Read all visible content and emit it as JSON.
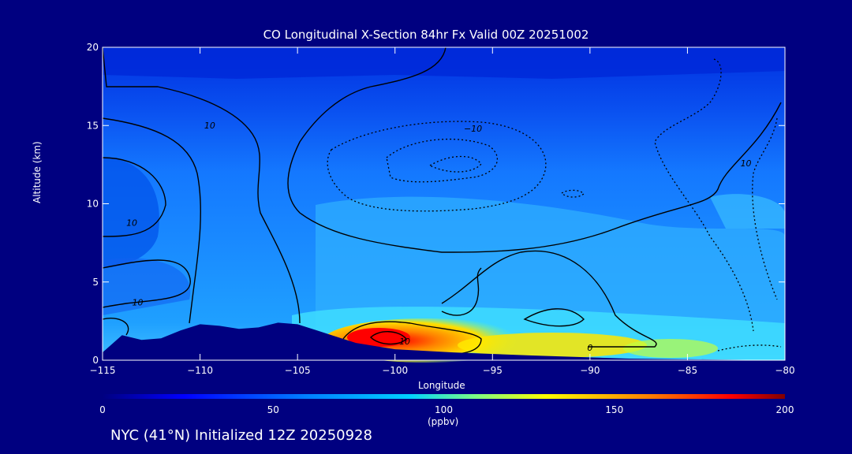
{
  "chart_data": {
    "type": "heatmap",
    "title": "CO Longitudinal X-Section 84hr  Fx Valid 00Z 20251002",
    "xlabel": "Longitude",
    "ylabel": "Altitude (km)",
    "xlim": [
      -115,
      -80
    ],
    "ylim": [
      0,
      20
    ],
    "x_ticks": [
      -115,
      -110,
      -105,
      -100,
      -95,
      -90,
      -85,
      -80
    ],
    "y_ticks": [
      0,
      5,
      10,
      15,
      20
    ],
    "colorbar": {
      "min": 0,
      "max": 200,
      "ticks": [
        0,
        50,
        100,
        150,
        200
      ],
      "unit": "(ppbv)",
      "colors": [
        "#000080",
        "#0000ff",
        "#0080ff",
        "#00c0ff",
        "#40ffff",
        "#c0ff40",
        "#ffff00",
        "#ff8000",
        "#ff0000",
        "#800000"
      ]
    },
    "field_levels": [
      {
        "alt": [
          0,
          2
        ],
        "value_range": [
          90,
          200
        ]
      },
      {
        "alt": [
          2,
          5
        ],
        "value_range": [
          60,
          90
        ]
      },
      {
        "alt": [
          5,
          12
        ],
        "value_range": [
          50,
          70
        ]
      },
      {
        "alt": [
          12,
          20
        ],
        "value_range": [
          20,
          50
        ]
      }
    ],
    "contour_labels": [
      {
        "text": "10",
        "lon": -109.5,
        "alt": 14.8
      },
      {
        "text": "10",
        "lon": -113.5,
        "alt": 8.6
      },
      {
        "text": "10",
        "lon": -113.2,
        "alt": 3.5
      },
      {
        "text": "-10",
        "lon": -96.0,
        "alt": 14.6
      },
      {
        "text": "10",
        "lon": -82.0,
        "alt": 12.4
      },
      {
        "text": "10",
        "lon": -99.5,
        "alt": 1.0
      },
      {
        "text": "0",
        "lon": -90.0,
        "alt": 0.6
      }
    ],
    "terrain": [
      [
        -115,
        0.5
      ],
      [
        -114,
        1.6
      ],
      [
        -113,
        1.3
      ],
      [
        -112,
        1.4
      ],
      [
        -111,
        1.9
      ],
      [
        -110,
        2.3
      ],
      [
        -109,
        2.2
      ],
      [
        -108,
        2.0
      ],
      [
        -107,
        2.1
      ],
      [
        -106,
        2.4
      ],
      [
        -105,
        2.3
      ],
      [
        -104,
        1.9
      ],
      [
        -103,
        1.5
      ],
      [
        -102,
        1.1
      ],
      [
        -101,
        0.9
      ],
      [
        -100,
        0.7
      ],
      [
        -97,
        0.5
      ],
      [
        -93,
        0.3
      ],
      [
        -88,
        0.1
      ],
      [
        -84,
        0.05
      ],
      [
        -80,
        0.0
      ]
    ]
  },
  "footer": "NYC (41°N) Initialized 12Z 20250928"
}
